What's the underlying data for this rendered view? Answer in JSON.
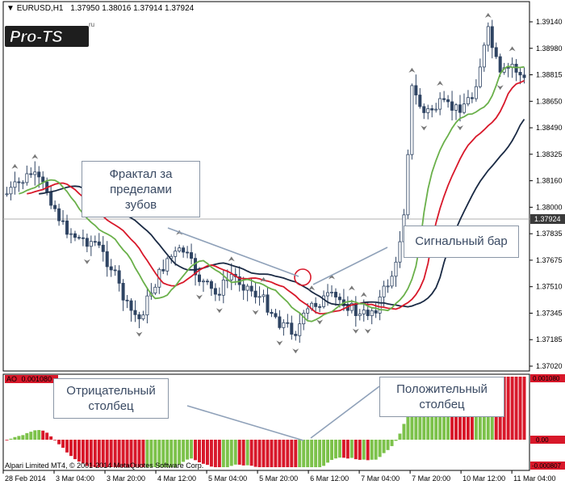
{
  "header": {
    "symbol": "EURUSD,H1",
    "ohlc": "1.37950 1.38016 1.37914 1.37924"
  },
  "logo": {
    "text": "Pro-TS",
    "sup": "ru"
  },
  "price_axis": {
    "ticks": [
      "1.39140",
      "1.38980",
      "1.38815",
      "1.38650",
      "1.38490",
      "1.38325",
      "1.38160",
      "1.38000",
      "1.37835",
      "1.37675",
      "1.37510",
      "1.37345",
      "1.37185",
      "1.37020"
    ],
    "current": "1.37924"
  },
  "ao": {
    "label": "AO",
    "top_value": "0.001080",
    "mid_value": "0.00",
    "bottom_value": "-0.000807"
  },
  "time_axis": [
    "28 Feb 2014",
    "3 Mar 04:00",
    "3 Mar 20:00",
    "4 Mar 12:00",
    "5 Mar 04:00",
    "5 Mar 20:00",
    "6 Mar 12:00",
    "7 Mar 04:00",
    "7 Mar 20:00",
    "10 Mar 12:00",
    "11 Mar 04:00"
  ],
  "footer": "Alpari Limited MT4, © 2001-2014 MetaQuotes Software Corp.",
  "annotations": {
    "fractal": [
      "Фрактал за",
      "пределами",
      "зубов"
    ],
    "signal_bar": "Сигнальный бар",
    "negative": [
      "Отрицательный",
      "столбец"
    ],
    "positive": [
      "Положительный",
      "столбец"
    ]
  },
  "colors": {
    "jaw": "#1a2a44",
    "teeth": "#d8182a",
    "lips": "#6ab04a",
    "candle": "#2f4463",
    "ao_up": "#7cc24a",
    "ao_down": "#d8182a",
    "arrow": "#8fa1b9"
  },
  "chart_data": {
    "type": "candlestick",
    "indicators": [
      "Alligator",
      "Fractals",
      "Awesome Oscillator"
    ]
  }
}
